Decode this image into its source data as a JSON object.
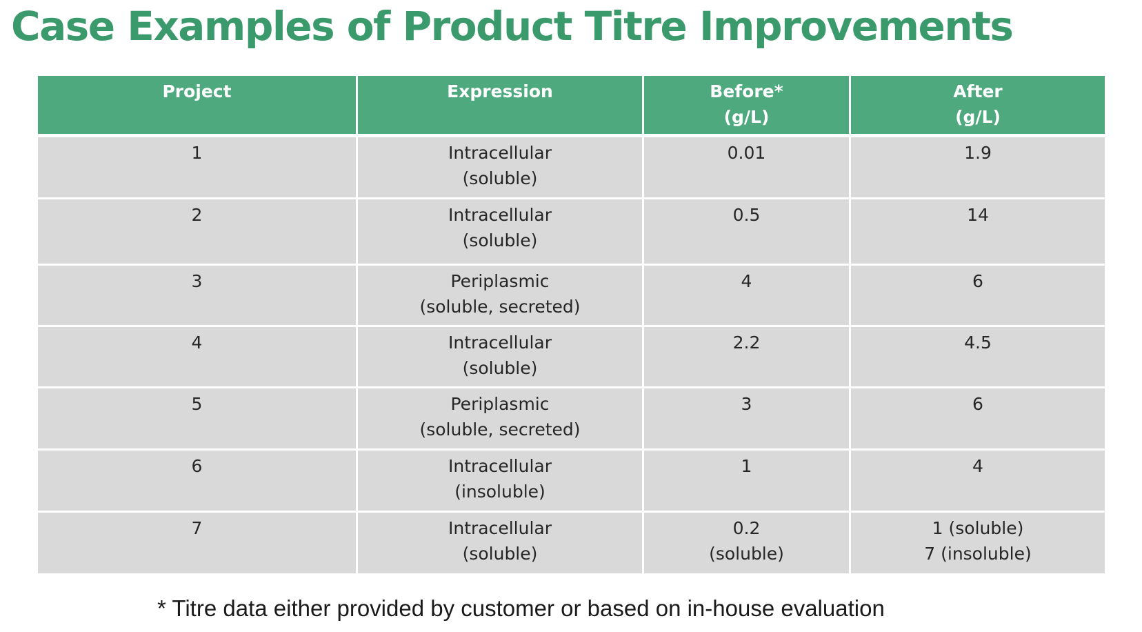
{
  "title": "Case Examples of Product Titre Improvements",
  "table": {
    "headers": [
      [
        "Project"
      ],
      [
        "Expression"
      ],
      [
        "Before*",
        "(g/L)"
      ],
      [
        "After",
        "(g/L)"
      ]
    ],
    "rows": [
      [
        [
          "1"
        ],
        [
          "Intracellular",
          "(soluble)"
        ],
        [
          "0.01"
        ],
        [
          "1.9"
        ]
      ],
      [
        [
          "2"
        ],
        [
          "Intracellular",
          "(soluble)"
        ],
        [
          "0.5"
        ],
        [
          "14"
        ]
      ],
      [
        [
          "3"
        ],
        [
          "Periplasmic",
          "(soluble, secreted)"
        ],
        [
          "4"
        ],
        [
          "6"
        ]
      ],
      [
        [
          "4"
        ],
        [
          "Intracellular",
          "(soluble)"
        ],
        [
          "2.2"
        ],
        [
          "4.5"
        ]
      ],
      [
        [
          "5"
        ],
        [
          "Periplasmic",
          "(soluble, secreted)"
        ],
        [
          "3"
        ],
        [
          "6"
        ]
      ],
      [
        [
          "6"
        ],
        [
          "Intracellular",
          "(insoluble)"
        ],
        [
          "1"
        ],
        [
          "4"
        ]
      ],
      [
        [
          "7"
        ],
        [
          "Intracellular",
          "(soluble)"
        ],
        [
          "0.2",
          "(soluble)"
        ],
        [
          "1 (soluble)",
          "7 (insoluble)"
        ]
      ]
    ]
  },
  "footnote": "* Titre data either provided by customer or based on in-house evaluation",
  "colors": {
    "title": "#3a9a6c",
    "header_bg": "#4ea97e",
    "cell_bg": "#d9d9d9"
  }
}
